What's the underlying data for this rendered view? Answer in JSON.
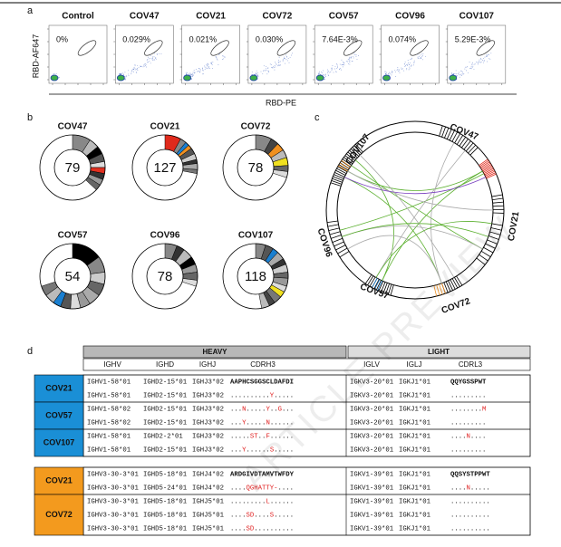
{
  "figure": {
    "panel_a": {
      "label": "a",
      "y_label": "RBD-AF647",
      "x_label": "RBD-PE",
      "samples": [
        {
          "name": "Control",
          "frequency": "0%"
        },
        {
          "name": "COV47",
          "frequency": "0.029%"
        },
        {
          "name": "COV21",
          "frequency": "0.021%"
        },
        {
          "name": "COV72",
          "frequency": "0.030%"
        },
        {
          "name": "COV57",
          "frequency": "7.64E-3%"
        },
        {
          "name": "COV96",
          "frequency": "0.074%"
        },
        {
          "name": "COV107",
          "frequency": "5.29E-3%"
        }
      ]
    },
    "panel_b": {
      "label": "b",
      "donors": [
        {
          "name": "COV47",
          "count": 79,
          "segments": [
            {
              "color": "#888888",
              "share": 9
            },
            {
              "color": "#bbbbbb",
              "share": 5
            },
            {
              "color": "#000000",
              "share": 4
            },
            {
              "color": "#555555",
              "share": 4
            },
            {
              "color": "#dddddd",
              "share": 3
            },
            {
              "color": "#e03020",
              "share": 3
            },
            {
              "color": "#333333",
              "share": 3
            },
            {
              "color": "#999999",
              "share": 3
            },
            {
              "color": "#666666",
              "share": 3
            }
          ]
        },
        {
          "name": "COV21",
          "count": 127,
          "segments": [
            {
              "color": "#e02a1c",
              "share": 8
            },
            {
              "color": "#888888",
              "share": 3
            },
            {
              "color": "#1a7fd0",
              "share": 2
            },
            {
              "color": "#f09020",
              "share": 2
            },
            {
              "color": "#555555",
              "share": 3
            },
            {
              "color": "#cccccc",
              "share": 3
            },
            {
              "color": "#333333",
              "share": 2
            },
            {
              "color": "#aaaaaa",
              "share": 3
            },
            {
              "color": "#777777",
              "share": 2
            }
          ]
        },
        {
          "name": "COV72",
          "count": 78,
          "segments": [
            {
              "color": "#888888",
              "share": 8
            },
            {
              "color": "#444444",
              "share": 4
            },
            {
              "color": "#f09020",
              "share": 4
            },
            {
              "color": "#bbbbbb",
              "share": 4
            },
            {
              "color": "#f0e020",
              "share": 4
            },
            {
              "color": "#666666",
              "share": 3
            },
            {
              "color": "#dddddd",
              "share": 3
            }
          ]
        },
        {
          "name": "COV57",
          "count": 54,
          "segments": [
            {
              "color": "#000000",
              "share": 15
            },
            {
              "color": "#888888",
              "share": 8
            },
            {
              "color": "#cccccc",
              "share": 6
            },
            {
              "color": "#666666",
              "share": 6
            },
            {
              "color": "#aaaaaa",
              "share": 6
            },
            {
              "color": "#999999",
              "share": 5
            },
            {
              "color": "#dddddd",
              "share": 5
            },
            {
              "color": "#555555",
              "share": 5
            },
            {
              "color": "#1a7fd0",
              "share": 4
            },
            {
              "color": "#bbbbbb",
              "share": 5
            },
            {
              "color": "#777777",
              "share": 5
            }
          ]
        },
        {
          "name": "COV96",
          "count": 78,
          "segments": [
            {
              "color": "#888888",
              "share": 6
            },
            {
              "color": "#333333",
              "share": 4
            },
            {
              "color": "#bbbbbb",
              "share": 5
            },
            {
              "color": "#000000",
              "share": 4
            },
            {
              "color": "#999999",
              "share": 4
            },
            {
              "color": "#666666",
              "share": 4
            },
            {
              "color": "#dddddd",
              "share": 3
            }
          ]
        },
        {
          "name": "COV107",
          "count": 118,
          "segments": [
            {
              "color": "#888888",
              "share": 5
            },
            {
              "color": "#555555",
              "share": 4
            },
            {
              "color": "#1a7fd0",
              "share": 3
            },
            {
              "color": "#aaaaaa",
              "share": 4
            },
            {
              "color": "#333333",
              "share": 3
            },
            {
              "color": "#cccccc",
              "share": 4
            },
            {
              "color": "#666666",
              "share": 3
            },
            {
              "color": "#999999",
              "share": 4
            },
            {
              "color": "#dddddd",
              "share": 3
            },
            {
              "color": "#f0e020",
              "share": 3
            },
            {
              "color": "#777777",
              "share": 4
            },
            {
              "color": "#444444",
              "share": 3
            },
            {
              "color": "#bbbbbb",
              "share": 4
            }
          ]
        }
      ]
    },
    "panel_c": {
      "label": "c",
      "donors": [
        "COV107",
        "COV47",
        "COV21",
        "COV72",
        "COV57",
        "COV96"
      ]
    },
    "panel_d": {
      "label": "d",
      "heavy": "HEAVY",
      "light": "LIGHT",
      "columns": [
        "IGHV",
        "IGHD",
        "IGHJ",
        "CDRH3",
        "IGLV",
        "IGLJ",
        "CDRL3"
      ],
      "groups": [
        {
          "color": "#1a8fd6",
          "donors": [
            {
              "name": "COV21",
              "rows": [
                [
                  "IGHV1-58*01",
                  "IGHD2-15*01",
                  "IGHJ3*02",
                  "AAPHCSGGSCLDAFDI",
                  "IGKV3-20*01",
                  "IGKJ1*01",
                  "QQYGSSPWT"
                ],
                [
                  "IGHV1-58*01",
                  "IGHD2-15*01",
                  "IGHJ3*02",
                  "..........Y.....",
                  "IGKV3-20*01",
                  "IGKJ1*01",
                  "........."
                ]
              ]
            },
            {
              "name": "COV57",
              "rows": [
                [
                  "IGHV1-58*02",
                  "IGHD2-15*01",
                  "IGHJ3*02",
                  "...N.....Y..G...",
                  "IGKV3-20*01",
                  "IGKJ1*01",
                  "........M"
                ],
                [
                  "IGHV1-58*02",
                  "IGHD2-15*01",
                  "IGHJ3*02",
                  "...Y.....N......",
                  "IGKV3-20*01",
                  "IGKJ1*01",
                  "........."
                ]
              ]
            },
            {
              "name": "COV107",
              "rows": [
                [
                  "IGHV1-58*01",
                  "IGHD2-2*01",
                  "IGHJ3*02",
                  ".....ST..F......",
                  "IGKV3-20*01",
                  "IGKJ1*01",
                  "....N...."
                ],
                [
                  "IGHV1-58*01",
                  "IGHD2-15*01",
                  "IGHJ3*02",
                  "...Y......S.....",
                  "IGKV3-20*01",
                  "IGKJ1*01",
                  "........."
                ]
              ]
            }
          ]
        },
        {
          "color": "#f39a1e",
          "donors": [
            {
              "name": "COV21",
              "rows": [
                [
                  "IGHV3-30-3*01",
                  "IGHD5-18*01",
                  "IGHJ4*02",
                  "ARDGIVDTAMVTWFDY",
                  "IGKV1-39*01",
                  "IGKJ1*01",
                  "QQSYSTPPWT"
                ],
                [
                  "IGHV3-30-3*01",
                  "IGHD5-24*01",
                  "IGHJ4*02",
                  "....QGHATTY-....",
                  "IGKV1-39*01",
                  "IGKJ1*01",
                  "....N....."
                ]
              ]
            },
            {
              "name": "COV72",
              "rows": [
                [
                  "IGHV3-30-3*01",
                  "IGHD5-18*01",
                  "IGHJ5*01",
                  ".........L......",
                  "IGKV1-39*01",
                  "IGKJ1*01",
                  ".........."
                ],
                [
                  "IGHV3-30-3*01",
                  "IGHD5-18*01",
                  "IGHJ5*01",
                  "....SD....S.....",
                  "IGKV1-39*01",
                  "IGKJ1*01",
                  ".........."
                ],
                [
                  "IGHV3-30-3*01",
                  "IGHD5-18*01",
                  "IGHJ5*01",
                  "....SD..........",
                  "IGKV1-39*01",
                  "IGKJ1*01",
                  ".........."
                ]
              ]
            }
          ]
        }
      ]
    },
    "watermark": "ARTICLE PREVIEW"
  }
}
